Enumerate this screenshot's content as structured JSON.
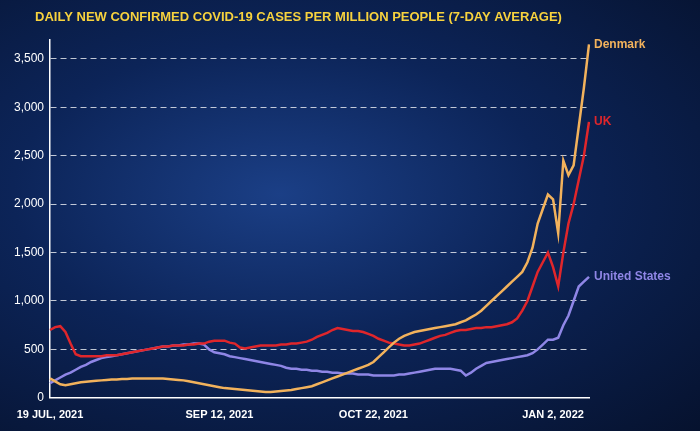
{
  "chart_data": {
    "type": "line",
    "title": "DAILY NEW CONFIRMED COVID-19 CASES PER MILLION PEOPLE (7-DAY AVERAGE)",
    "categories": [
      "19 JUL, 2021",
      null,
      null,
      null,
      null,
      null,
      null,
      null,
      null,
      null,
      null,
      null,
      null,
      null,
      null,
      null,
      null,
      null,
      null,
      null,
      null,
      null,
      null,
      null,
      null,
      null,
      null,
      null,
      null,
      null,
      null,
      null,
      null,
      "SEP 12, 2021",
      null,
      null,
      null,
      null,
      null,
      null,
      null,
      null,
      null,
      null,
      null,
      null,
      null,
      null,
      null,
      null,
      null,
      null,
      null,
      null,
      null,
      null,
      null,
      null,
      null,
      null,
      null,
      null,
      null,
      "OCT 22, 2021",
      null,
      null,
      null,
      null,
      null,
      null,
      null,
      null,
      null,
      null,
      null,
      null,
      null,
      null,
      null,
      null,
      null,
      null,
      null,
      null,
      null,
      null,
      null,
      null,
      null,
      null,
      null,
      null,
      null,
      null,
      null,
      null,
      null,
      null,
      "JAN 2, 2022",
      null,
      null,
      null,
      null,
      null,
      null,
      null
    ],
    "series": [
      {
        "name": "Denmark",
        "color": "#f2b25c",
        "values": [
          200,
          170,
          140,
          130,
          140,
          150,
          160,
          165,
          170,
          175,
          180,
          185,
          190,
          190,
          195,
          195,
          200,
          200,
          200,
          200,
          200,
          200,
          200,
          195,
          190,
          185,
          180,
          170,
          160,
          150,
          140,
          130,
          120,
          110,
          100,
          95,
          90,
          85,
          80,
          75,
          70,
          65,
          60,
          60,
          65,
          70,
          75,
          80,
          90,
          100,
          110,
          120,
          140,
          160,
          180,
          200,
          220,
          240,
          260,
          280,
          300,
          320,
          340,
          370,
          420,
          470,
          520,
          570,
          610,
          640,
          660,
          680,
          690,
          700,
          710,
          720,
          730,
          740,
          750,
          760,
          780,
          800,
          830,
          860,
          900,
          950,
          1000,
          1050,
          1100,
          1150,
          1200,
          1250,
          1300,
          1400,
          1550,
          1800,
          1950,
          2100,
          2050,
          1700,
          2450,
          2300,
          2400,
          2800,
          3200,
          3650
        ]
      },
      {
        "name": "UK",
        "color": "#e0262b",
        "values": [
          700,
          730,
          740,
          680,
          560,
          450,
          430,
          430,
          430,
          430,
          430,
          440,
          440,
          440,
          450,
          460,
          470,
          480,
          490,
          500,
          510,
          520,
          530,
          530,
          540,
          540,
          540,
          550,
          550,
          560,
          560,
          580,
          590,
          590,
          590,
          570,
          560,
          520,
          510,
          520,
          530,
          540,
          540,
          540,
          540,
          550,
          550,
          560,
          560,
          570,
          580,
          600,
          630,
          650,
          670,
          700,
          720,
          710,
          700,
          690,
          690,
          680,
          660,
          640,
          610,
          590,
          570,
          560,
          550,
          540,
          540,
          550,
          560,
          580,
          600,
          620,
          640,
          650,
          670,
          690,
          700,
          700,
          710,
          720,
          720,
          730,
          730,
          740,
          750,
          760,
          780,
          820,
          900,
          1000,
          1150,
          1300,
          1400,
          1500,
          1350,
          1150,
          1500,
          1800,
          2000,
          2250,
          2500,
          2850
        ]
      },
      {
        "name": "United States",
        "color": "#8f86e6",
        "values": [
          150,
          180,
          210,
          240,
          260,
          290,
          320,
          340,
          370,
          390,
          410,
          420,
          430,
          440,
          450,
          460,
          470,
          480,
          490,
          500,
          510,
          520,
          530,
          530,
          540,
          540,
          550,
          550,
          560,
          560,
          550,
          500,
          470,
          460,
          450,
          430,
          420,
          410,
          400,
          390,
          380,
          370,
          360,
          350,
          340,
          330,
          310,
          300,
          300,
          290,
          290,
          280,
          280,
          270,
          270,
          260,
          260,
          250,
          250,
          250,
          240,
          240,
          240,
          230,
          230,
          230,
          230,
          230,
          240,
          240,
          250,
          260,
          270,
          280,
          290,
          300,
          300,
          300,
          300,
          290,
          280,
          230,
          260,
          300,
          330,
          360,
          370,
          380,
          390,
          400,
          410,
          420,
          430,
          440,
          460,
          500,
          550,
          600,
          600,
          620,
          750,
          850,
          1000,
          1150,
          1200,
          1250
        ]
      }
    ],
    "ylim": [
      0,
      3700
    ],
    "yticks": [
      0,
      500,
      {
        "value": 1000,
        "label": "1,000"
      },
      {
        "value": 1500,
        "label": "1,500"
      },
      {
        "value": 2000,
        "label": "2,000"
      },
      {
        "value": 2500,
        "label": "2,500"
      },
      {
        "value": 3000,
        "label": "3,000"
      },
      {
        "value": 3500,
        "label": "3,500"
      }
    ],
    "grid": true
  }
}
